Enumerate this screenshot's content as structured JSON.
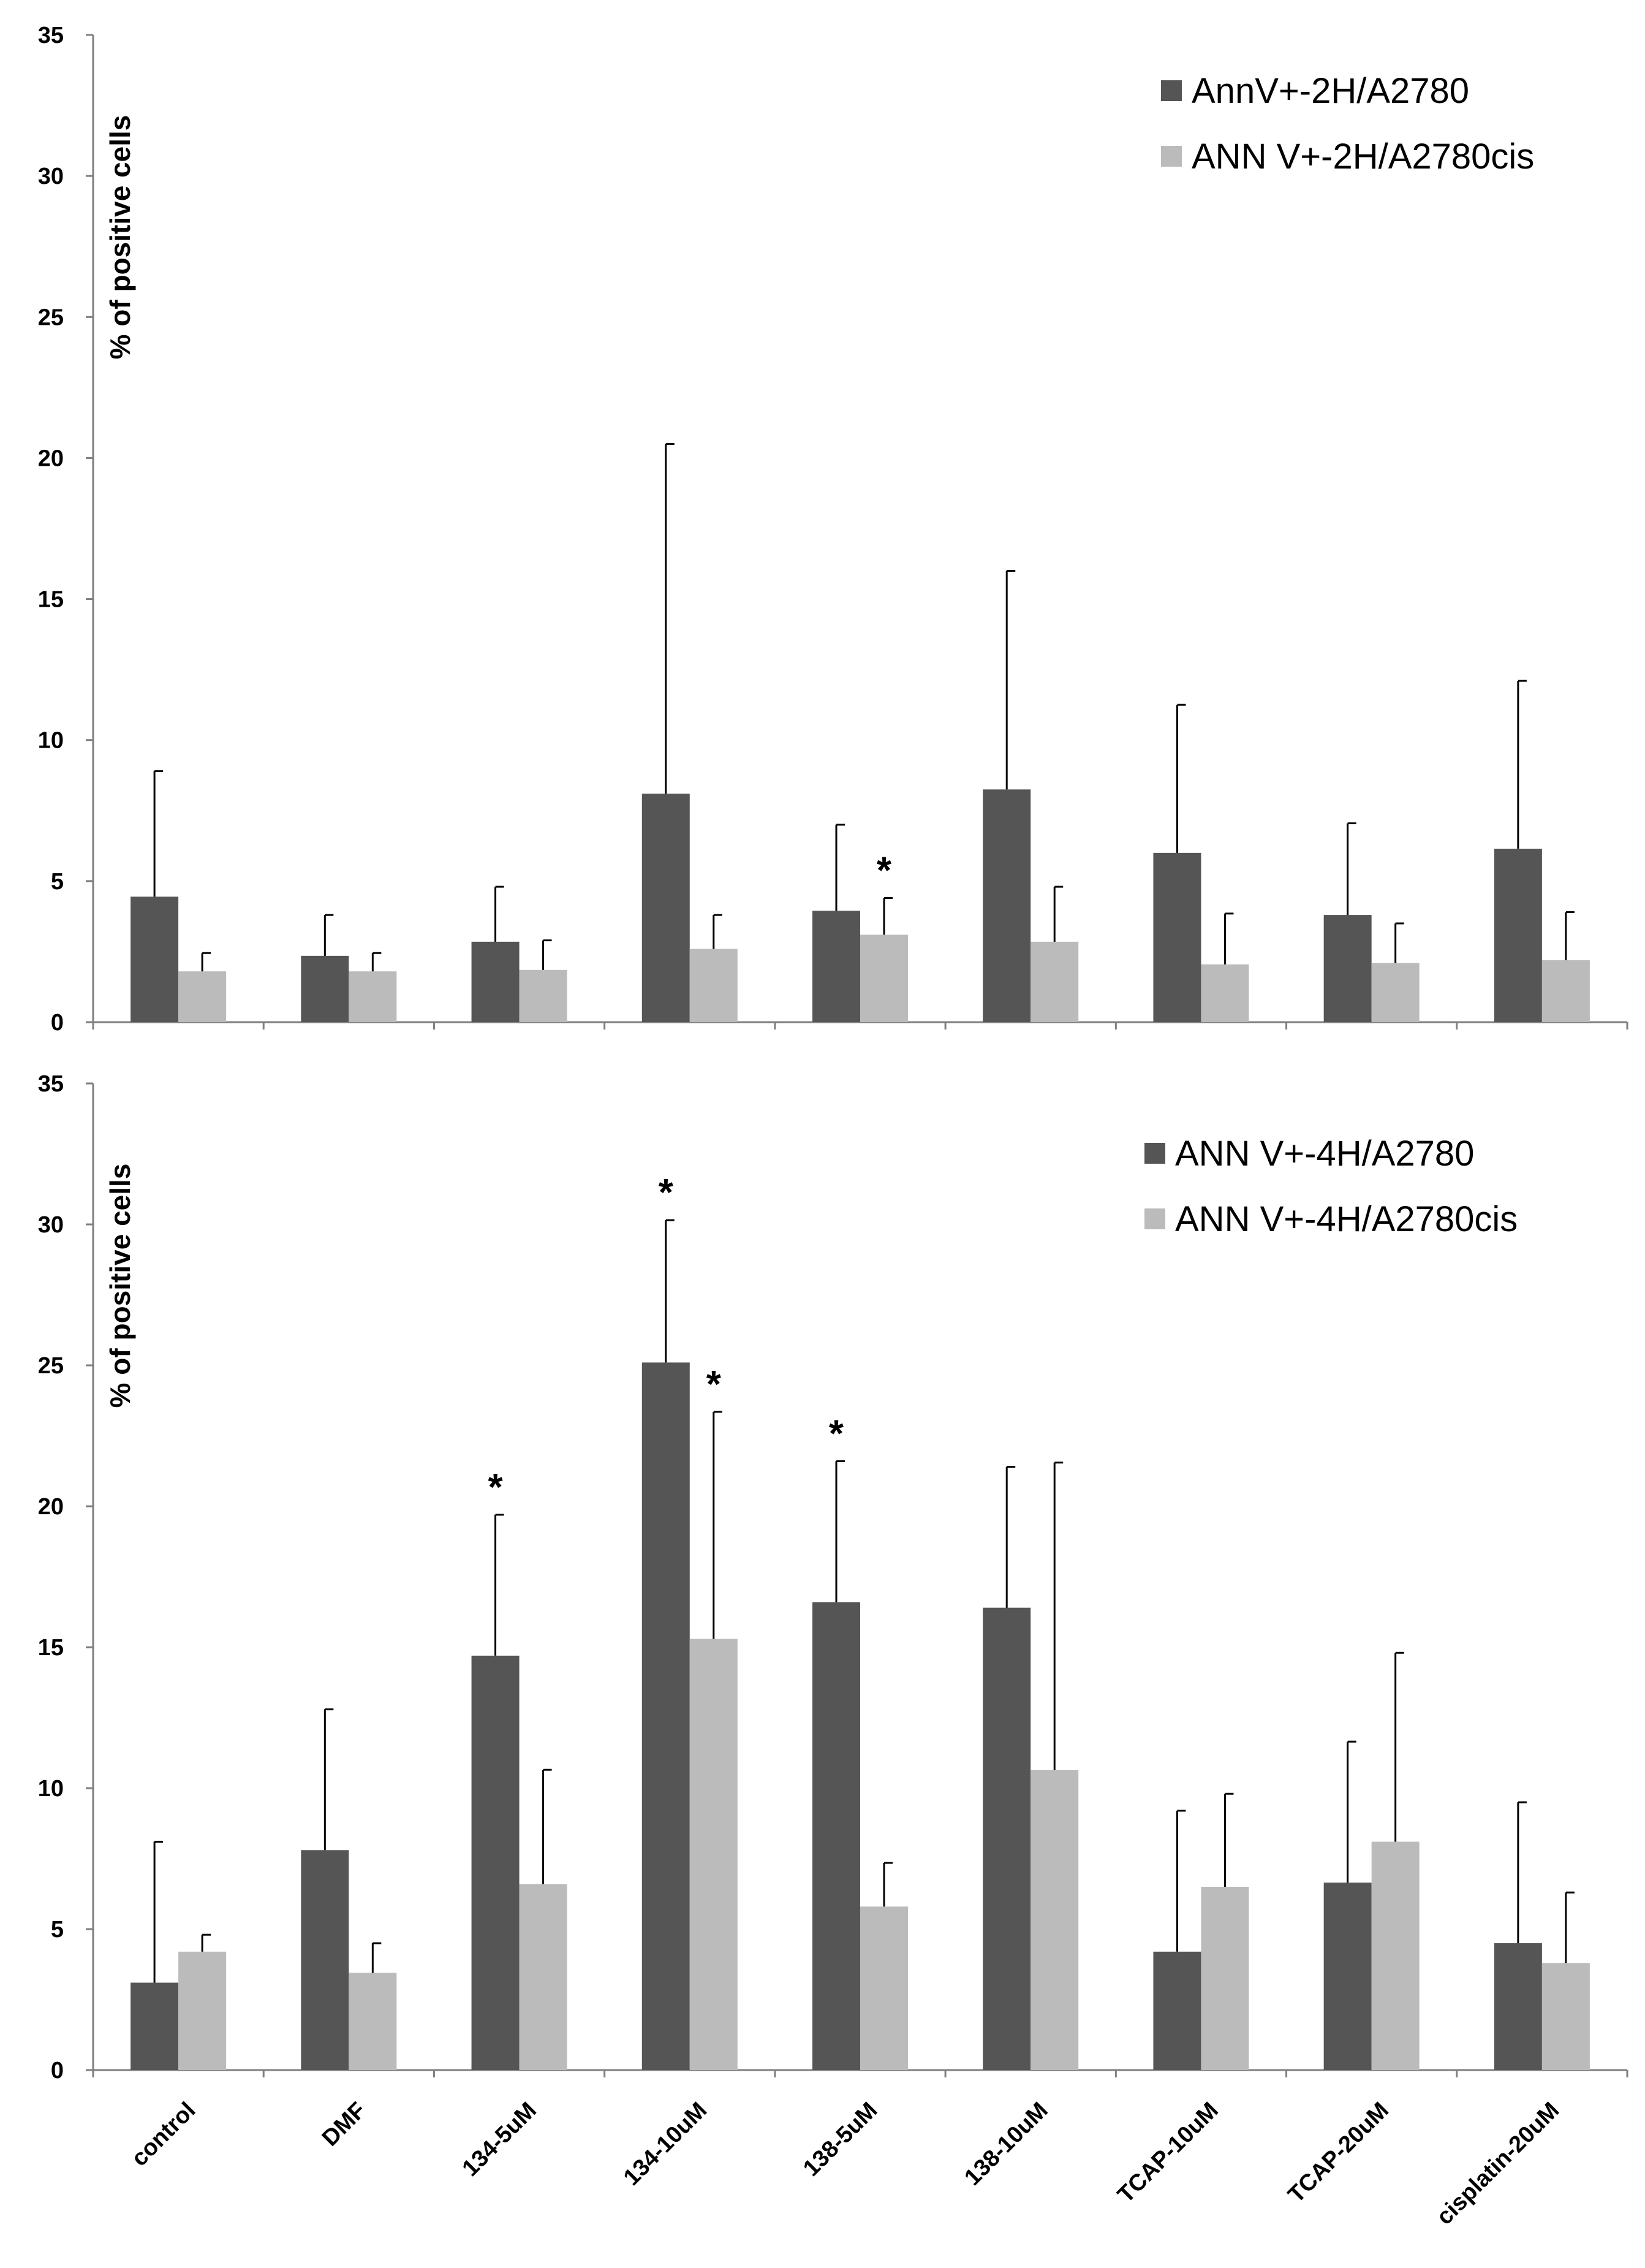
{
  "chart_data": [
    {
      "type": "bar",
      "title": "",
      "xlabel": "",
      "ylabel": "% of positive cells",
      "ylim": [
        0,
        35
      ],
      "yticks": [
        "0",
        "5",
        "10",
        "15",
        "20",
        "25",
        "30",
        "35"
      ],
      "grid": false,
      "legend_position": "top-right",
      "categories": [
        "control",
        "DMF",
        "134-5uM",
        "134-10uM",
        "138-5uM",
        "138-10uM",
        "TCAP-10uM",
        "TCAP-20uM",
        "cisplatin-20uM"
      ],
      "show_category_labels": false,
      "series": [
        {
          "name": "AnnV+-2H/A2780",
          "color": "#555555",
          "values": [
            4.45,
            2.35,
            2.85,
            8.1,
            3.95,
            8.25,
            6.0,
            3.8,
            6.15
          ],
          "error": [
            4.45,
            1.45,
            1.95,
            12.4,
            3.05,
            7.75,
            5.25,
            3.25,
            5.95
          ],
          "significant": [
            false,
            false,
            false,
            false,
            false,
            false,
            false,
            false,
            false
          ]
        },
        {
          "name": "ANN V+-2H/A2780cis",
          "color": "#bbbbbb",
          "values": [
            1.8,
            1.8,
            1.85,
            2.6,
            3.1,
            2.85,
            2.05,
            2.1,
            2.2
          ],
          "error": [
            0.65,
            0.65,
            1.05,
            1.2,
            1.3,
            1.95,
            1.8,
            1.4,
            1.7
          ],
          "significant": [
            false,
            false,
            false,
            false,
            true,
            false,
            false,
            false,
            false
          ]
        }
      ],
      "significance_marker": "*"
    },
    {
      "type": "bar",
      "title": "",
      "xlabel": "",
      "ylabel": "% of positive cells",
      "ylim": [
        0,
        35
      ],
      "yticks": [
        "0",
        "5",
        "10",
        "15",
        "20",
        "25",
        "30",
        "35"
      ],
      "grid": false,
      "legend_position": "top-right",
      "categories": [
        "control",
        "DMF",
        "134-5uM",
        "134-10uM",
        "138-5uM",
        "138-10uM",
        "TCAP-10uM",
        "TCAP-20uM",
        "cisplatin-20uM"
      ],
      "show_category_labels": true,
      "series": [
        {
          "name": "ANN V+-4H/A2780",
          "color": "#555555",
          "values": [
            3.1,
            7.8,
            14.7,
            25.1,
            16.6,
            16.4,
            4.2,
            6.65,
            4.5
          ],
          "error": [
            5.0,
            5.0,
            5.0,
            5.05,
            5.0,
            5.0,
            5.0,
            5.0,
            5.0
          ],
          "significant": [
            false,
            false,
            true,
            true,
            true,
            false,
            false,
            false,
            false
          ]
        },
        {
          "name": "ANN V+-4H/A2780cis",
          "color": "#bbbbbb",
          "values": [
            4.2,
            3.45,
            6.6,
            15.3,
            5.8,
            10.65,
            6.5,
            8.1,
            3.8
          ],
          "error": [
            0.6,
            1.05,
            4.05,
            8.05,
            1.55,
            10.9,
            3.3,
            6.7,
            2.5
          ],
          "significant": [
            false,
            false,
            false,
            true,
            false,
            false,
            false,
            false,
            false
          ]
        }
      ],
      "significance_marker": "*"
    }
  ]
}
